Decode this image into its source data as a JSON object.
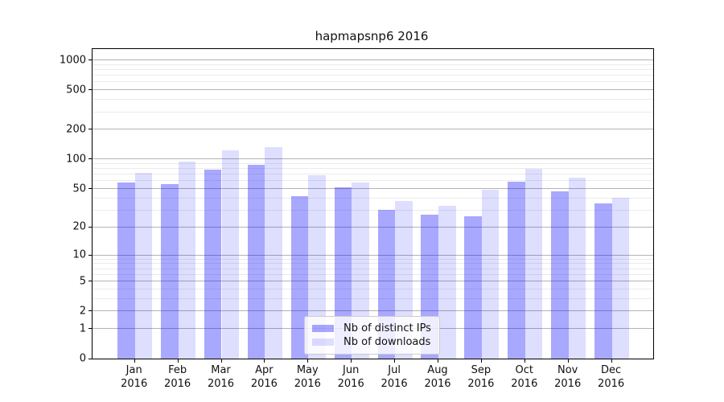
{
  "chart_data": {
    "type": "bar",
    "title": "hapmapsnp6 2016",
    "x_months": [
      "Jan",
      "Feb",
      "Mar",
      "Apr",
      "May",
      "Jun",
      "Jul",
      "Aug",
      "Sep",
      "Oct",
      "Nov",
      "Dec"
    ],
    "x_year": "2016",
    "series": [
      {
        "name": "Nb of distinct IPs",
        "color": "rgba(0,0,255,0.34)",
        "values": [
          58,
          56,
          78,
          88,
          42,
          52,
          30,
          27,
          26,
          59,
          47,
          35
        ]
      },
      {
        "name": "Nb of downloads",
        "color": "rgba(0,0,255,0.13)",
        "values": [
          72,
          95,
          122,
          131,
          68,
          58,
          37,
          33,
          49,
          80,
          65,
          40
        ]
      }
    ],
    "y_scale": "log1p",
    "y_major_ticks": [
      0,
      1,
      2,
      5,
      10,
      20,
      50,
      100,
      200,
      500,
      1000
    ],
    "y_minor_gridlines": [
      3,
      4,
      6,
      7,
      8,
      9,
      30,
      40,
      60,
      70,
      80,
      90,
      300,
      400,
      600,
      700,
      800,
      900
    ],
    "ylim": [
      0,
      1280
    ],
    "grid": true,
    "legend_position": "lower center",
    "colors": {
      "grid_major": "#b3b3b3",
      "grid_minor": "#ebebeb",
      "axis_frame": "#000000",
      "bar_distinct_ips": "rgba(0,0,255,0.34)",
      "bar_downloads": "rgba(0,0,255,0.13)"
    }
  }
}
